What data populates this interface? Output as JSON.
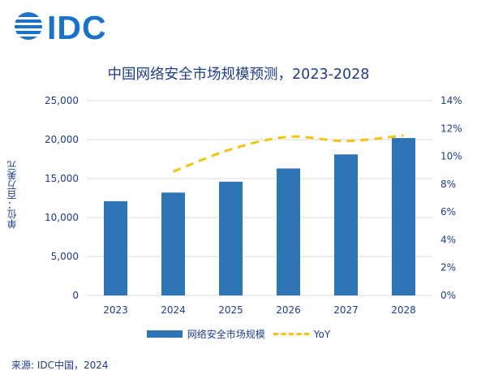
{
  "logo_text": "IDC",
  "source": "来源: IDC中国，2024",
  "colors": {
    "bar": "#2e75b6",
    "line": "#f2c40e",
    "text": "#1f3c88",
    "grid": "#d9d9d9",
    "logo": "#1a73c8"
  },
  "chart_data": {
    "type": "bar",
    "title": "中国网络安全市场规模预测，2023-2028",
    "ylabel": "单位：百万美元",
    "y2label": "",
    "categories": [
      "2023",
      "2024",
      "2025",
      "2026",
      "2027",
      "2028"
    ],
    "ylim": [
      0,
      25000
    ],
    "yticks": [
      "0",
      "5,000",
      "10,000",
      "15,000",
      "20,000",
      "25,000"
    ],
    "y2lim": [
      0,
      14
    ],
    "y2ticks": [
      "0%",
      "2%",
      "4%",
      "6%",
      "8%",
      "10%",
      "12%",
      "14%"
    ],
    "series": [
      {
        "name": "网络安全市场规模",
        "type": "bar",
        "axis": "left",
        "values": [
          12100,
          13200,
          14600,
          16300,
          18100,
          20200
        ]
      },
      {
        "name": "YoY",
        "type": "line",
        "axis": "right",
        "style": "dashed",
        "values": [
          null,
          8.9,
          10.5,
          11.4,
          11.1,
          11.5
        ]
      }
    ],
    "grid": true,
    "legend": "bottom"
  }
}
